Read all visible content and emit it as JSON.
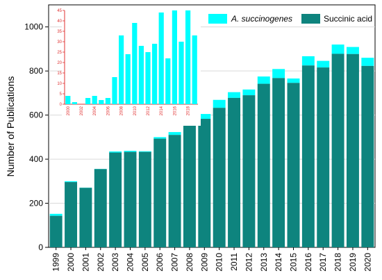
{
  "chart_data": [
    {
      "type": "bar",
      "role": "main",
      "categories": [
        "1999",
        "2000",
        "2001",
        "2002",
        "2003",
        "2004",
        "2005",
        "2006",
        "2007",
        "2008",
        "2009",
        "2010",
        "2011",
        "2012",
        "2013",
        "2014",
        "2015",
        "2016",
        "2017",
        "2018",
        "2019",
        "2020"
      ],
      "series": [
        {
          "name": "Succinic acid",
          "color": "#0e847e",
          "values": [
            143,
            296,
            270,
            355,
            430,
            433,
            433,
            493,
            510,
            594,
            583,
            633,
            678,
            690,
            742,
            768,
            746,
            825,
            816,
            878,
            877,
            823
          ]
        },
        {
          "name": "A. succinogenes",
          "color": "#00ffff",
          "values": [
            9,
            4,
            1,
            1,
            5,
            5,
            3,
            7,
            13,
            34,
            22,
            36,
            26,
            26,
            33,
            41,
            20,
            42,
            30,
            42,
            32,
            37
          ]
        }
      ],
      "stacked": true,
      "xlabel": "",
      "ylabel": "Number of Publications",
      "yticks": [
        0,
        200,
        400,
        600,
        800,
        1000
      ],
      "ylim": [
        0,
        1100
      ],
      "grid": "horizontal",
      "legend": "top-right"
    },
    {
      "type": "bar",
      "role": "inset",
      "categories": [
        "2000",
        "2001",
        "2002",
        "2003",
        "2004",
        "2005",
        "2006",
        "2007",
        "2008",
        "2009",
        "2010",
        "2011",
        "2012",
        "2013",
        "2014",
        "2015",
        "2016",
        "2017",
        "2018",
        "2019"
      ],
      "xtick_labels": [
        "2000",
        "",
        "2002",
        "",
        "2004",
        "",
        "2006",
        "",
        "2008",
        "",
        "2010",
        "",
        "2012",
        "",
        "2014",
        "",
        "2016",
        "",
        "2018",
        ""
      ],
      "values": [
        4,
        1,
        0,
        3,
        4,
        2,
        3,
        13,
        33,
        24,
        39,
        28,
        25,
        29,
        44,
        22,
        45,
        30,
        45,
        33
      ],
      "color": "#00ffff",
      "yticks": [
        0,
        5,
        10,
        15,
        20,
        25,
        30,
        35,
        40,
        45
      ],
      "ylim": [
        0,
        45
      ]
    }
  ]
}
